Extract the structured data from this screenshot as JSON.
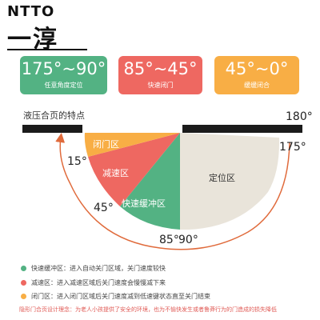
{
  "brand": {
    "logo": "NTTO",
    "name": "一淳"
  },
  "cards": [
    {
      "angle": "175°~90°",
      "desc": "任意角度定位",
      "color": "#53b283"
    },
    {
      "angle": "85°~45°",
      "desc": "快速闭门",
      "color": "#ee6861"
    },
    {
      "angle": "45°~0°",
      "desc": "缓缓闭合",
      "color": "#f8ae45"
    }
  ],
  "section_title": "液压合页的特点",
  "zones": {
    "positioning": "定位区",
    "fast_buffer": "快速缓冲区",
    "slowdown": "减速区",
    "closing": "闭门区"
  },
  "angles": {
    "a180": "180°",
    "a175": "175°",
    "a15": "15°",
    "a45": "45°",
    "a85": "85°",
    "a90": "90°"
  },
  "legend": [
    {
      "text": "快速缓冲区：进入自动关门区域，关门速度较快",
      "color": "#53b283"
    },
    {
      "text": "减速区：进入减速区域后关门速度会慢慢减下来",
      "color": "#ee6861"
    },
    {
      "text": "闭门区：进入闭门区域后关门速度减到低速键状态直至关门结束",
      "color": "#f8ae45"
    }
  ],
  "footer": "隐形门合页设计理念：为老人小孩提供了安全的环境，也为不愉快发生或者鲁莽行为的门造成的损失降低",
  "colors": {
    "green": "#53b283",
    "red": "#ee6861",
    "orange": "#f8ae45",
    "beige": "#e9e4da",
    "arrow": "#e06b3c"
  }
}
